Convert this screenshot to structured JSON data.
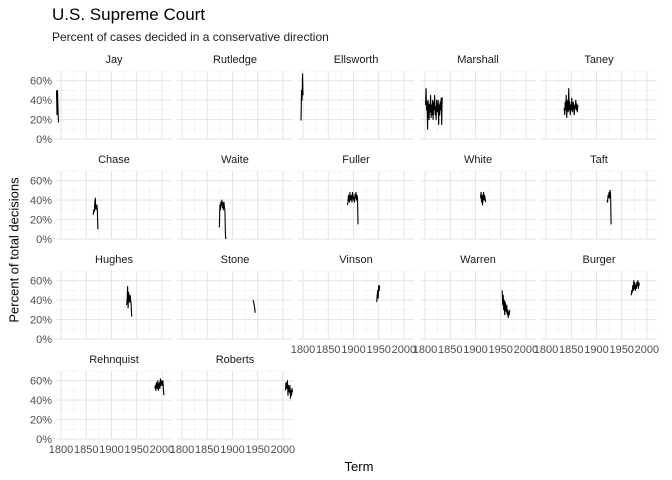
{
  "chart_data": {
    "type": "line",
    "title": "U.S. Supreme Court",
    "subtitle": "Percent of cases decided in a conservative direction",
    "xlabel": "Term",
    "ylabel": "Percent of total decisions",
    "xlim": [
      1790,
      2020
    ],
    "ylim": [
      0,
      0.7
    ],
    "x_ticks": [
      1800,
      1850,
      1900,
      1950,
      2000
    ],
    "y_ticks": [
      0,
      0.2,
      0.4,
      0.6
    ],
    "y_tick_labels": [
      "0%",
      "20%",
      "40%",
      "60%"
    ],
    "x_tick_labels": [
      "1800",
      "1850",
      "1900",
      "1950",
      "2000"
    ],
    "grid": true,
    "facets": [
      {
        "name": "Jay",
        "x": [
          1791,
          1792,
          1793,
          1794,
          1795
        ],
        "y": [
          0.5,
          0.25,
          0.5,
          0.3,
          0.17
        ]
      },
      {
        "name": "Rutledge",
        "x": [],
        "y": []
      },
      {
        "name": "Ellsworth",
        "x": [
          1796,
          1797,
          1798,
          1799,
          1800
        ],
        "y": [
          0.19,
          0.5,
          0.4,
          0.67,
          0.45
        ]
      },
      {
        "name": "Marshall",
        "x": [
          1801,
          1802,
          1803,
          1804,
          1805,
          1806,
          1807,
          1808,
          1809,
          1810,
          1811,
          1812,
          1813,
          1814,
          1815,
          1816,
          1817,
          1818,
          1819,
          1820,
          1821,
          1822,
          1823,
          1824,
          1825,
          1826,
          1827,
          1828,
          1829,
          1830,
          1831,
          1832,
          1833,
          1834
        ],
        "y": [
          0.35,
          0.52,
          0.3,
          0.38,
          0.1,
          0.4,
          0.32,
          0.2,
          0.36,
          0.28,
          0.45,
          0.22,
          0.35,
          0.25,
          0.4,
          0.2,
          0.38,
          0.3,
          0.45,
          0.25,
          0.33,
          0.2,
          0.4,
          0.28,
          0.3,
          0.4,
          0.15,
          0.35,
          0.25,
          0.38,
          0.3,
          0.42,
          0.15,
          0.43
        ]
      },
      {
        "name": "Taney",
        "x": [
          1836,
          1837,
          1838,
          1839,
          1840,
          1841,
          1842,
          1843,
          1844,
          1845,
          1846,
          1847,
          1848,
          1849,
          1850,
          1851,
          1852,
          1853,
          1854,
          1855,
          1856,
          1857,
          1858,
          1859,
          1860,
          1861,
          1862,
          1863
        ],
        "y": [
          0.32,
          0.25,
          0.38,
          0.3,
          0.45,
          0.22,
          0.35,
          0.4,
          0.28,
          0.52,
          0.3,
          0.38,
          0.25,
          0.35,
          0.3,
          0.42,
          0.28,
          0.33,
          0.38,
          0.3,
          0.25,
          0.35,
          0.32,
          0.4,
          0.3,
          0.36,
          0.28,
          0.35
        ]
      },
      {
        "name": "Chase",
        "x": [
          1864,
          1865,
          1866,
          1867,
          1868,
          1869,
          1870,
          1871,
          1872,
          1873
        ],
        "y": [
          0.25,
          0.3,
          0.28,
          0.38,
          0.42,
          0.3,
          0.33,
          0.35,
          0.3,
          0.1
        ]
      },
      {
        "name": "Waite",
        "x": [
          1874,
          1875,
          1876,
          1877,
          1878,
          1879,
          1880,
          1881,
          1882,
          1883,
          1884,
          1885,
          1886,
          1887
        ],
        "y": [
          0.12,
          0.35,
          0.3,
          0.38,
          0.35,
          0.4,
          0.32,
          0.37,
          0.3,
          0.38,
          0.33,
          0.3,
          0.05,
          0.0
        ]
      },
      {
        "name": "Fuller",
        "x": [
          1888,
          1889,
          1890,
          1891,
          1892,
          1893,
          1894,
          1895,
          1896,
          1897,
          1898,
          1899,
          1900,
          1901,
          1902,
          1903,
          1904,
          1905,
          1906,
          1907,
          1908,
          1909
        ],
        "y": [
          0.35,
          0.38,
          0.45,
          0.42,
          0.38,
          0.48,
          0.4,
          0.45,
          0.42,
          0.38,
          0.48,
          0.45,
          0.4,
          0.43,
          0.38,
          0.46,
          0.42,
          0.48,
          0.4,
          0.45,
          0.42,
          0.15
        ]
      },
      {
        "name": "White",
        "x": [
          1910,
          1911,
          1912,
          1913,
          1914,
          1915,
          1916,
          1917,
          1918,
          1919,
          1920
        ],
        "y": [
          0.42,
          0.48,
          0.38,
          0.45,
          0.35,
          0.43,
          0.48,
          0.4,
          0.45,
          0.42,
          0.38
        ]
      },
      {
        "name": "Taft",
        "x": [
          1921,
          1922,
          1923,
          1924,
          1925,
          1926,
          1927,
          1928,
          1929
        ],
        "y": [
          0.4,
          0.38,
          0.45,
          0.43,
          0.48,
          0.42,
          0.5,
          0.45,
          0.15
        ]
      },
      {
        "name": "Hughes",
        "x": [
          1930,
          1931,
          1932,
          1933,
          1934,
          1935,
          1936,
          1937,
          1938,
          1939,
          1940
        ],
        "y": [
          0.35,
          0.4,
          0.54,
          0.32,
          0.48,
          0.42,
          0.38,
          0.45,
          0.4,
          0.35,
          0.23
        ]
      },
      {
        "name": "Stone",
        "x": [
          1941,
          1942,
          1943,
          1944,
          1945
        ],
        "y": [
          0.4,
          0.38,
          0.35,
          0.32,
          0.27
        ]
      },
      {
        "name": "Vinson",
        "x": [
          1946,
          1947,
          1948,
          1949,
          1950,
          1951,
          1952
        ],
        "y": [
          0.38,
          0.45,
          0.5,
          0.42,
          0.55,
          0.5,
          0.55
        ]
      },
      {
        "name": "Warren",
        "x": [
          1953,
          1954,
          1955,
          1956,
          1957,
          1958,
          1959,
          1960,
          1961,
          1962,
          1963,
          1964,
          1965,
          1966,
          1967,
          1968
        ],
        "y": [
          0.5,
          0.35,
          0.45,
          0.3,
          0.4,
          0.25,
          0.38,
          0.3,
          0.28,
          0.35,
          0.25,
          0.3,
          0.22,
          0.28,
          0.25,
          0.3
        ]
      },
      {
        "name": "Burger",
        "x": [
          1969,
          1970,
          1971,
          1972,
          1973,
          1974,
          1975,
          1976,
          1977,
          1978,
          1979,
          1980,
          1981,
          1982,
          1983,
          1984,
          1985
        ],
        "y": [
          0.45,
          0.5,
          0.48,
          0.55,
          0.5,
          0.6,
          0.52,
          0.58,
          0.5,
          0.55,
          0.52,
          0.58,
          0.55,
          0.6,
          0.52,
          0.58,
          0.55
        ]
      },
      {
        "name": "Rehnquist",
        "x": [
          1986,
          1987,
          1988,
          1989,
          1990,
          1991,
          1992,
          1993,
          1994,
          1995,
          1996,
          1997,
          1998,
          1999,
          2000,
          2001,
          2002,
          2003,
          2004
        ],
        "y": [
          0.52,
          0.55,
          0.5,
          0.58,
          0.55,
          0.52,
          0.6,
          0.5,
          0.55,
          0.58,
          0.52,
          0.62,
          0.55,
          0.6,
          0.58,
          0.55,
          0.6,
          0.5,
          0.45
        ]
      },
      {
        "name": "Roberts",
        "x": [
          2005,
          2006,
          2007,
          2008,
          2009,
          2010,
          2011,
          2012,
          2013,
          2014,
          2015,
          2016,
          2017,
          2018,
          2019
        ],
        "y": [
          0.5,
          0.58,
          0.52,
          0.55,
          0.6,
          0.45,
          0.55,
          0.5,
          0.48,
          0.55,
          0.42,
          0.5,
          0.45,
          0.52,
          0.48
        ]
      }
    ]
  }
}
